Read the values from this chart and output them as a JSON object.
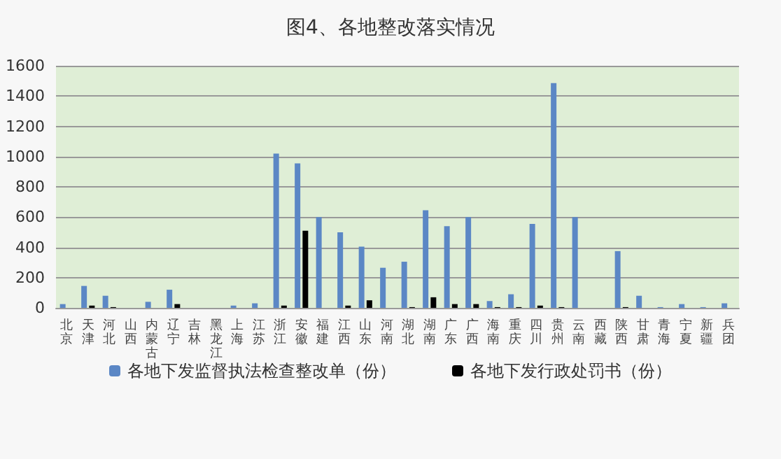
{
  "chart_data": {
    "type": "bar",
    "title": "图4、各地整改落实情况",
    "categories": [
      "北京",
      "天津",
      "河北",
      "山西",
      "内蒙古",
      "辽宁",
      "吉林",
      "黑龙江",
      "上海",
      "江苏",
      "浙江",
      "安徽",
      "福建",
      "江西",
      "山东",
      "河南",
      "湖北",
      "湖南",
      "广东",
      "广西",
      "海南",
      "重庆",
      "四川",
      "贵州",
      "云南",
      "西藏",
      "陕西",
      "甘肃",
      "青海",
      "宁夏",
      "新疆",
      "兵团"
    ],
    "series": [
      {
        "name": "各地下发监督执法检查整改单（份）",
        "color": "#5b87c5",
        "values": [
          25,
          145,
          80,
          0,
          40,
          120,
          0,
          0,
          15,
          30,
          1020,
          955,
          600,
          500,
          405,
          265,
          305,
          645,
          540,
          600,
          45,
          90,
          555,
          1485,
          600,
          0,
          375,
          80,
          5,
          25,
          5,
          30
        ]
      },
      {
        "name": "各地下发行政处罚书（份）",
        "color": "#000000",
        "values": [
          0,
          15,
          5,
          0,
          0,
          25,
          0,
          0,
          0,
          0,
          15,
          510,
          0,
          15,
          50,
          0,
          5,
          70,
          25,
          25,
          5,
          5,
          15,
          5,
          0,
          0,
          5,
          0,
          0,
          0,
          0,
          0
        ]
      }
    ],
    "ylim": [
      0,
      1600
    ],
    "yticks": [
      0,
      200,
      400,
      600,
      800,
      1000,
      1200,
      1400,
      1600
    ],
    "grid": "y",
    "legend": "bottom"
  }
}
